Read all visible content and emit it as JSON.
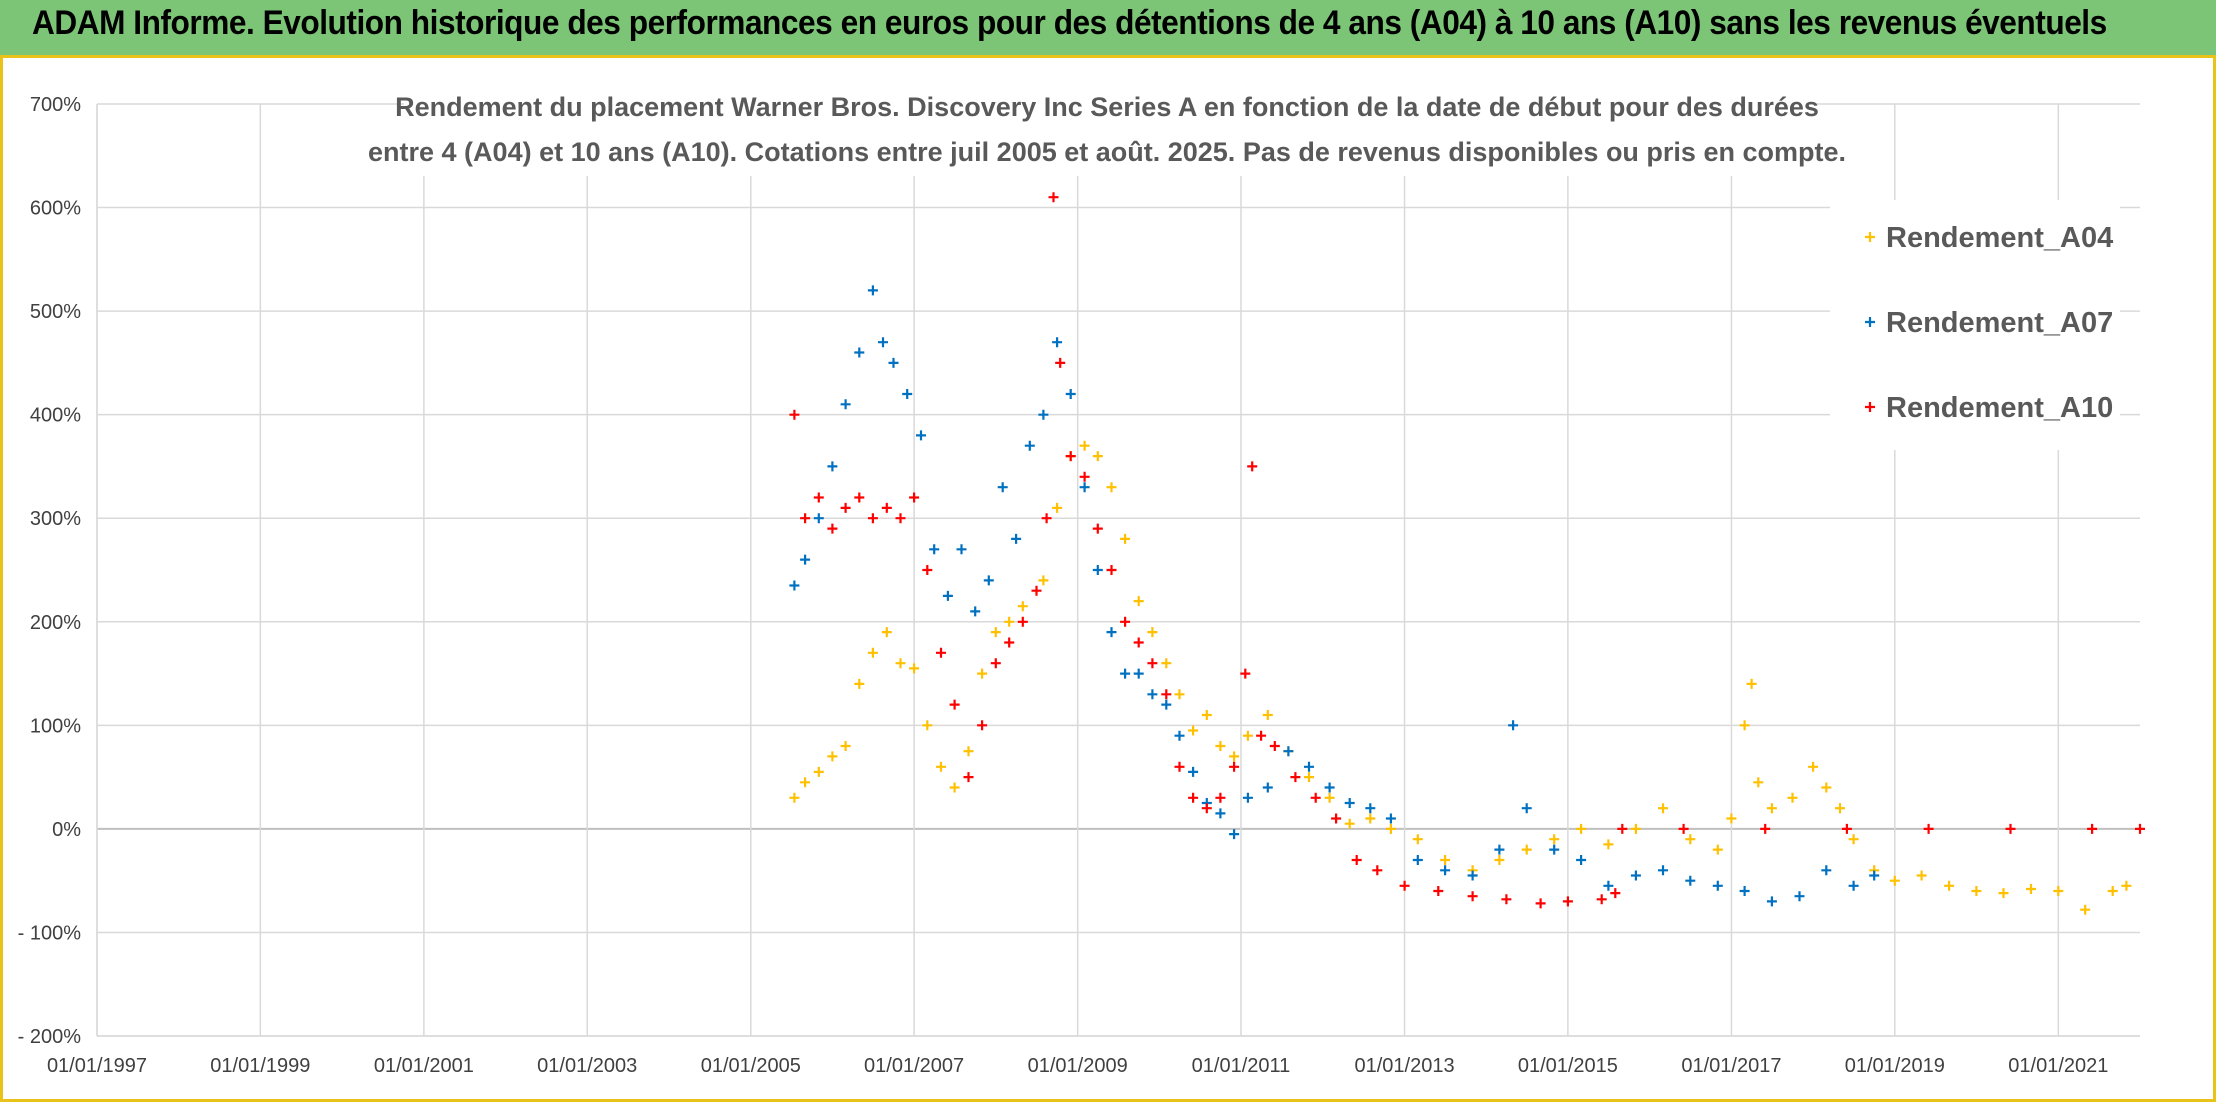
{
  "header": {
    "title": "ADAM Informe. Evolution historique des performances en euros pour des détentions de 4 ans (A04) à 10 ans (A10) sans les revenus éventuels"
  },
  "colors": {
    "header_bg": "#7cc576",
    "border_accent": "#e9c21a",
    "gridline": "#d9d9d9",
    "zero_line": "#bfbfbf"
  },
  "chart_data": {
    "type": "scatter",
    "title_lines": [
      "Rendement du placement Warner Bros. Discovery Inc Series A en fonction de la date de début pour des durées",
      "entre 4 (A04) et 10 ans (A10). Cotations entre juil 2005 et août. 2025. Pas de revenus disponibles ou pris en compte."
    ],
    "xlabel": "",
    "ylabel": "",
    "x_type": "date",
    "xlim": [
      "1997-01-01",
      "2022-01-01"
    ],
    "ylim": [
      -200,
      700
    ],
    "y_ticks": [
      700,
      600,
      500,
      400,
      300,
      200,
      100,
      0,
      -100,
      -200
    ],
    "y_tick_labels": [
      "700%",
      "600%",
      "500%",
      "400%",
      "300%",
      "200%",
      "100%",
      "0%",
      "- 100%",
      "- 200%"
    ],
    "x_ticks": [
      "1997-01-01",
      "1999-01-01",
      "2001-01-01",
      "2003-01-01",
      "2005-01-01",
      "2007-01-01",
      "2009-01-01",
      "2011-01-01",
      "2013-01-01",
      "2015-01-01",
      "2017-01-01",
      "2019-01-01",
      "2021-01-01"
    ],
    "x_tick_labels": [
      "01/01/1997",
      "01/01/1999",
      "01/01/2001",
      "01/01/2003",
      "01/01/2005",
      "01/01/2007",
      "01/01/2009",
      "01/01/2011",
      "01/01/2013",
      "01/01/2015",
      "01/01/2017",
      "01/01/2019",
      "01/01/2021"
    ],
    "grid": true,
    "legend_position": "right",
    "marker": "+",
    "series": [
      {
        "name": "Rendement_A04",
        "color": "#ffc000",
        "points": [
          [
            "2005-07-15",
            30
          ],
          [
            "2005-09-01",
            45
          ],
          [
            "2005-11-01",
            55
          ],
          [
            "2006-01-01",
            70
          ],
          [
            "2006-03-01",
            80
          ],
          [
            "2006-05-01",
            140
          ],
          [
            "2006-07-01",
            170
          ],
          [
            "2006-09-01",
            190
          ],
          [
            "2006-11-01",
            160
          ],
          [
            "2007-01-01",
            155
          ],
          [
            "2007-03-01",
            100
          ],
          [
            "2007-05-01",
            60
          ],
          [
            "2007-07-01",
            40
          ],
          [
            "2007-09-01",
            75
          ],
          [
            "2007-11-01",
            150
          ],
          [
            "2008-01-01",
            190
          ],
          [
            "2008-03-01",
            200
          ],
          [
            "2008-05-01",
            215
          ],
          [
            "2008-08-01",
            240
          ],
          [
            "2008-10-01",
            310
          ],
          [
            "2008-12-01",
            360
          ],
          [
            "2009-02-01",
            370
          ],
          [
            "2009-04-01",
            360
          ],
          [
            "2009-06-01",
            330
          ],
          [
            "2009-08-01",
            280
          ],
          [
            "2009-10-01",
            220
          ],
          [
            "2009-12-01",
            190
          ],
          [
            "2010-02-01",
            160
          ],
          [
            "2010-04-01",
            130
          ],
          [
            "2010-06-01",
            95
          ],
          [
            "2010-08-01",
            110
          ],
          [
            "2010-10-01",
            80
          ],
          [
            "2010-12-01",
            70
          ],
          [
            "2011-02-01",
            90
          ],
          [
            "2011-05-01",
            110
          ],
          [
            "2011-08-01",
            75
          ],
          [
            "2011-11-01",
            50
          ],
          [
            "2012-02-01",
            30
          ],
          [
            "2012-05-01",
            5
          ],
          [
            "2012-08-01",
            10
          ],
          [
            "2012-11-01",
            0
          ],
          [
            "2013-03-01",
            -10
          ],
          [
            "2013-07-01",
            -30
          ],
          [
            "2013-11-01",
            -40
          ],
          [
            "2014-03-01",
            -30
          ],
          [
            "2014-07-01",
            -20
          ],
          [
            "2014-11-01",
            -10
          ],
          [
            "2015-03-01",
            0
          ],
          [
            "2015-07-01",
            -15
          ],
          [
            "2015-11-01",
            0
          ],
          [
            "2016-03-01",
            20
          ],
          [
            "2016-07-01",
            -10
          ],
          [
            "2016-11-01",
            -20
          ],
          [
            "2017-01-01",
            10
          ],
          [
            "2017-03-01",
            100
          ],
          [
            "2017-04-01",
            140
          ],
          [
            "2017-05-01",
            45
          ],
          [
            "2017-07-01",
            20
          ],
          [
            "2017-10-01",
            30
          ],
          [
            "2018-01-01",
            60
          ],
          [
            "2018-03-01",
            40
          ],
          [
            "2018-05-01",
            20
          ],
          [
            "2018-07-01",
            -10
          ],
          [
            "2018-10-01",
            -40
          ],
          [
            "2019-01-01",
            -50
          ],
          [
            "2019-05-01",
            -45
          ],
          [
            "2019-09-01",
            -55
          ],
          [
            "2020-01-01",
            -60
          ],
          [
            "2020-05-01",
            -62
          ],
          [
            "2020-09-01",
            -58
          ],
          [
            "2021-01-01",
            -60
          ],
          [
            "2021-05-01",
            -78
          ],
          [
            "2021-09-01",
            -60
          ],
          [
            "2021-11-01",
            -55
          ]
        ]
      },
      {
        "name": "Rendement_A07",
        "color": "#0070c0",
        "points": [
          [
            "2005-07-15",
            235
          ],
          [
            "2005-09-01",
            260
          ],
          [
            "2005-11-01",
            300
          ],
          [
            "2006-01-01",
            350
          ],
          [
            "2006-03-01",
            410
          ],
          [
            "2006-05-01",
            460
          ],
          [
            "2006-07-01",
            520
          ],
          [
            "2006-08-15",
            470
          ],
          [
            "2006-10-01",
            450
          ],
          [
            "2006-12-01",
            420
          ],
          [
            "2007-02-01",
            380
          ],
          [
            "2007-04-01",
            270
          ],
          [
            "2007-06-01",
            225
          ],
          [
            "2007-08-01",
            270
          ],
          [
            "2007-10-01",
            210
          ],
          [
            "2007-12-01",
            240
          ],
          [
            "2008-02-01",
            330
          ],
          [
            "2008-04-01",
            280
          ],
          [
            "2008-06-01",
            370
          ],
          [
            "2008-08-01",
            400
          ],
          [
            "2008-10-01",
            470
          ],
          [
            "2008-12-01",
            420
          ],
          [
            "2009-02-01",
            330
          ],
          [
            "2009-04-01",
            250
          ],
          [
            "2009-06-01",
            190
          ],
          [
            "2009-08-01",
            150
          ],
          [
            "2009-10-01",
            150
          ],
          [
            "2009-12-01",
            130
          ],
          [
            "2010-02-01",
            120
          ],
          [
            "2010-04-01",
            90
          ],
          [
            "2010-06-01",
            55
          ],
          [
            "2010-08-01",
            25
          ],
          [
            "2010-10-01",
            15
          ],
          [
            "2010-12-01",
            -5
          ],
          [
            "2011-02-01",
            30
          ],
          [
            "2011-05-01",
            40
          ],
          [
            "2011-08-01",
            75
          ],
          [
            "2011-11-01",
            60
          ],
          [
            "2012-02-01",
            40
          ],
          [
            "2012-05-01",
            25
          ],
          [
            "2012-08-01",
            20
          ],
          [
            "2012-11-01",
            10
          ],
          [
            "2013-03-01",
            -30
          ],
          [
            "2013-07-01",
            -40
          ],
          [
            "2013-11-01",
            -45
          ],
          [
            "2014-03-01",
            -20
          ],
          [
            "2014-05-01",
            100
          ],
          [
            "2014-07-01",
            20
          ],
          [
            "2014-11-01",
            -20
          ],
          [
            "2015-03-01",
            -30
          ],
          [
            "2015-07-01",
            -55
          ],
          [
            "2015-11-01",
            -45
          ],
          [
            "2016-03-01",
            -40
          ],
          [
            "2016-07-01",
            -50
          ],
          [
            "2016-11-01",
            -55
          ],
          [
            "2017-03-01",
            -60
          ],
          [
            "2017-07-01",
            -70
          ],
          [
            "2017-11-01",
            -65
          ],
          [
            "2018-03-01",
            -40
          ],
          [
            "2018-07-01",
            -55
          ],
          [
            "2018-10-01",
            -45
          ]
        ]
      },
      {
        "name": "Rendement_A10",
        "color": "#ff0000",
        "points": [
          [
            "2005-07-15",
            400
          ],
          [
            "2005-09-01",
            300
          ],
          [
            "2005-11-01",
            320
          ],
          [
            "2006-01-01",
            290
          ],
          [
            "2006-03-01",
            310
          ],
          [
            "2006-05-01",
            320
          ],
          [
            "2006-07-01",
            300
          ],
          [
            "2006-09-01",
            310
          ],
          [
            "2006-11-01",
            300
          ],
          [
            "2007-01-01",
            320
          ],
          [
            "2007-03-01",
            250
          ],
          [
            "2007-05-01",
            170
          ],
          [
            "2007-07-01",
            120
          ],
          [
            "2007-09-01",
            50
          ],
          [
            "2007-11-01",
            100
          ],
          [
            "2008-01-01",
            160
          ],
          [
            "2008-03-01",
            180
          ],
          [
            "2008-05-01",
            200
          ],
          [
            "2008-07-01",
            230
          ],
          [
            "2008-08-15",
            300
          ],
          [
            "2008-09-15",
            610
          ],
          [
            "2008-10-15",
            450
          ],
          [
            "2008-12-01",
            360
          ],
          [
            "2009-02-01",
            340
          ],
          [
            "2009-04-01",
            290
          ],
          [
            "2009-06-01",
            250
          ],
          [
            "2009-08-01",
            200
          ],
          [
            "2009-10-01",
            180
          ],
          [
            "2009-12-01",
            160
          ],
          [
            "2010-02-01",
            130
          ],
          [
            "2010-04-01",
            60
          ],
          [
            "2010-06-01",
            30
          ],
          [
            "2010-08-01",
            20
          ],
          [
            "2010-10-01",
            30
          ],
          [
            "2010-12-01",
            60
          ],
          [
            "2011-01-20",
            150
          ],
          [
            "2011-02-20",
            350
          ],
          [
            "2011-04-01",
            90
          ],
          [
            "2011-06-01",
            80
          ],
          [
            "2011-09-01",
            50
          ],
          [
            "2011-12-01",
            30
          ],
          [
            "2012-03-01",
            10
          ],
          [
            "2012-06-01",
            -30
          ],
          [
            "2012-09-01",
            -40
          ],
          [
            "2013-01-01",
            -55
          ],
          [
            "2013-06-01",
            -60
          ],
          [
            "2013-11-01",
            -65
          ],
          [
            "2014-04-01",
            -68
          ],
          [
            "2014-09-01",
            -72
          ],
          [
            "2015-01-01",
            -70
          ],
          [
            "2015-06-01",
            -68
          ],
          [
            "2015-08-01",
            -62
          ],
          [
            "2015-09-01",
            0
          ],
          [
            "2016-06-01",
            0
          ],
          [
            "2017-06-01",
            0
          ],
          [
            "2018-06-01",
            0
          ],
          [
            "2019-06-01",
            0
          ],
          [
            "2020-06-01",
            0
          ],
          [
            "2021-06-01",
            0
          ],
          [
            "2022-01-01",
            0
          ]
        ]
      }
    ]
  }
}
